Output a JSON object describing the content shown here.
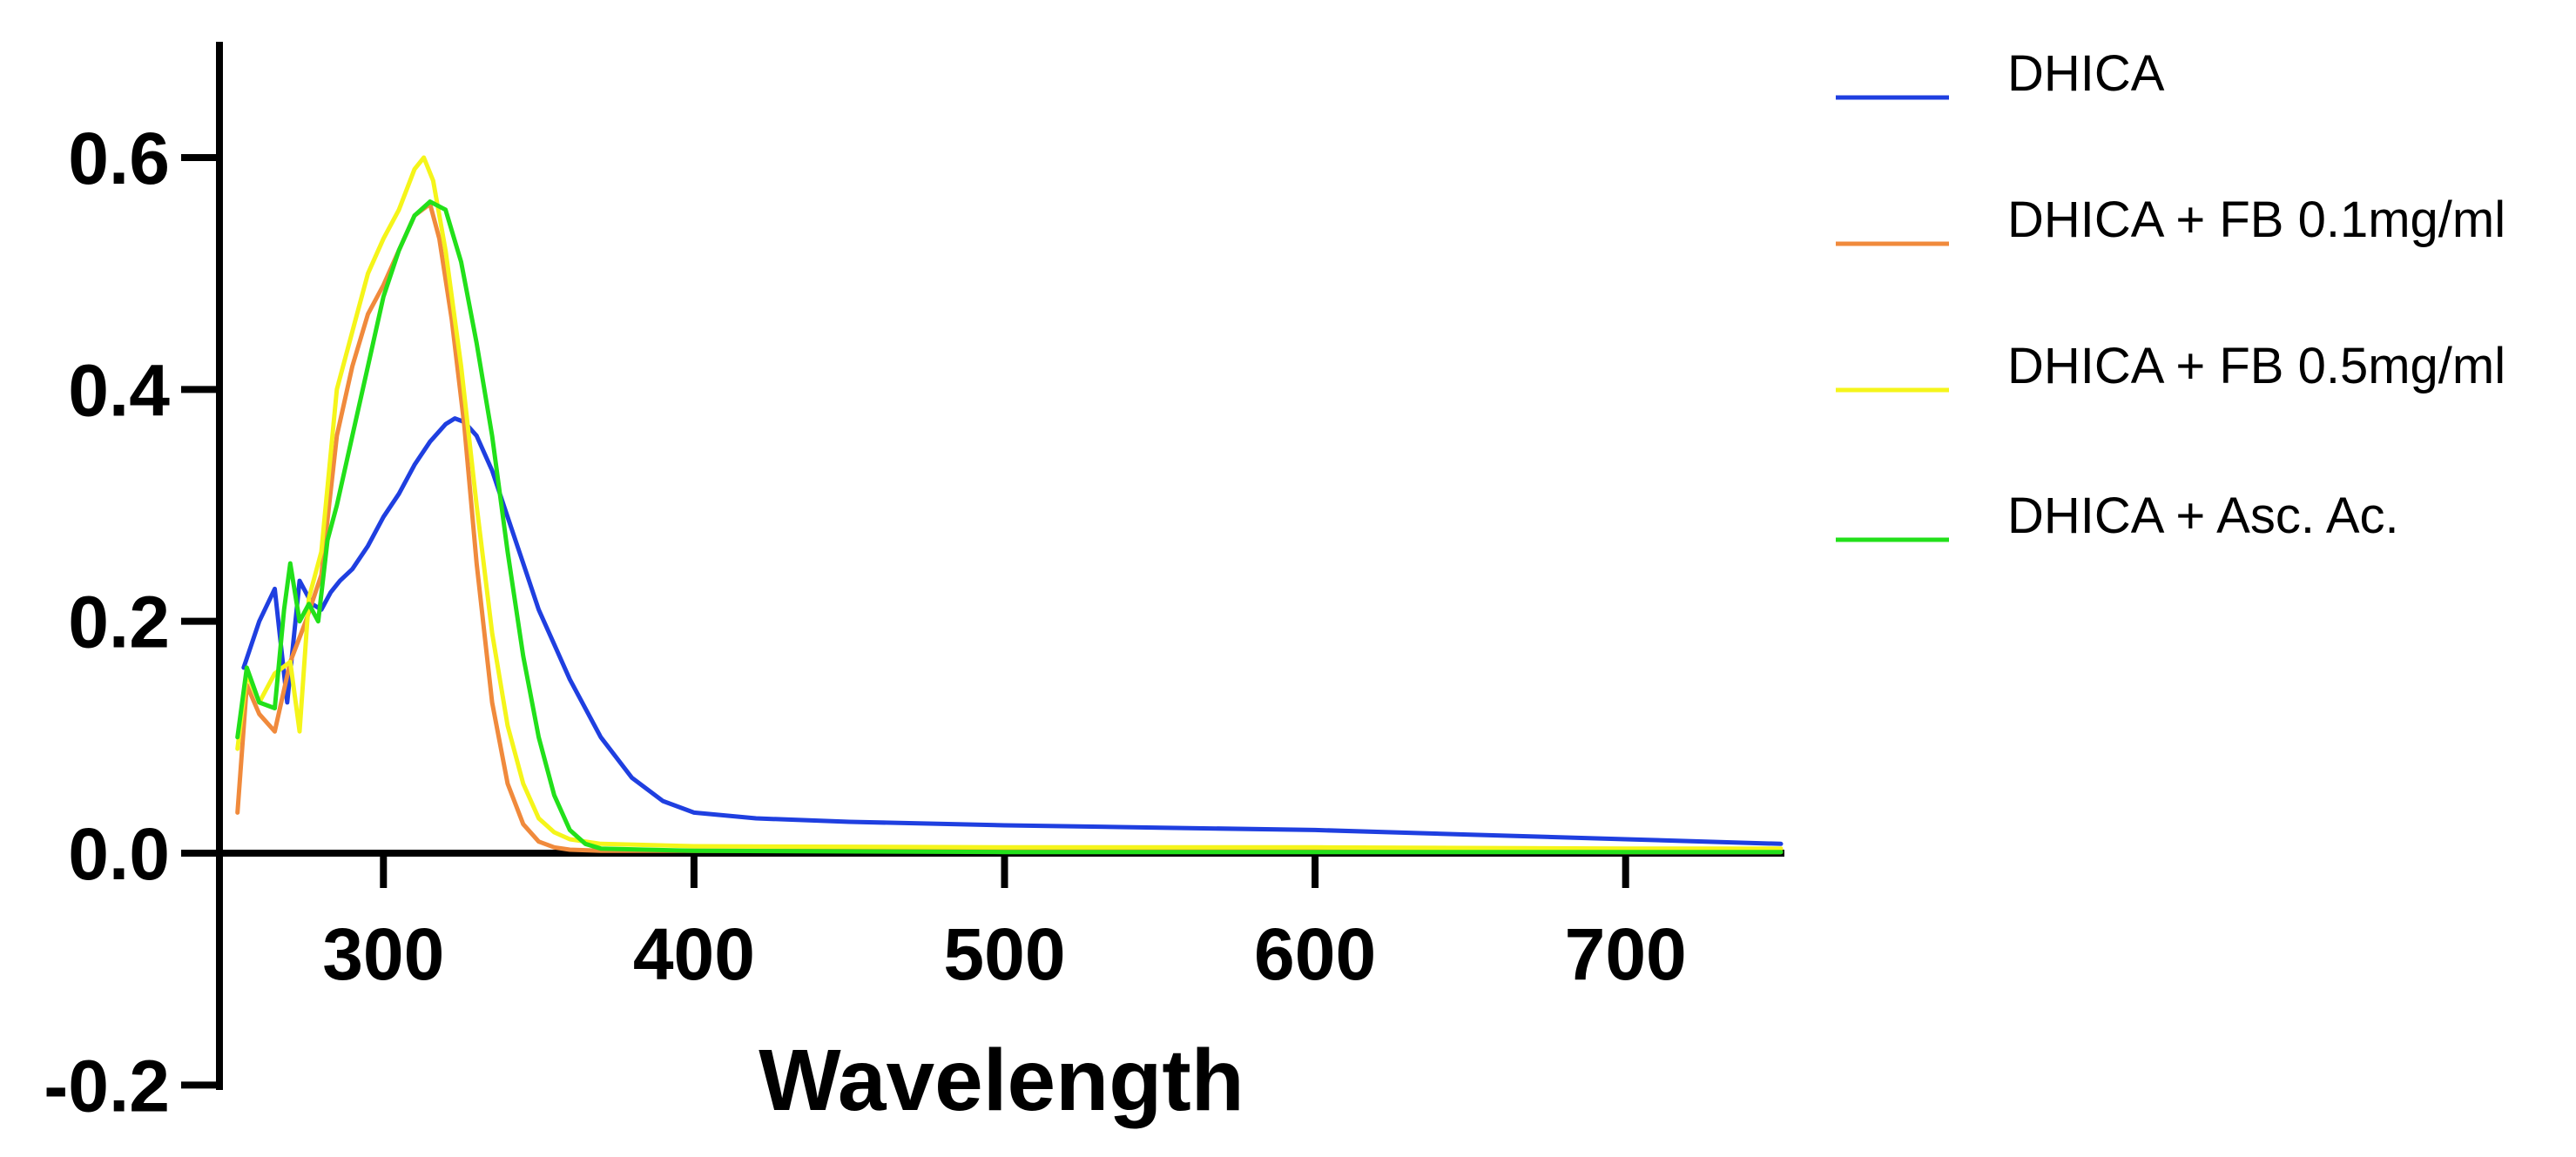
{
  "chart_data": {
    "type": "line",
    "title": "",
    "xlabel": "Wavelength",
    "ylabel": "",
    "xlim": [
      250,
      750
    ],
    "ylim": [
      -0.2,
      0.7
    ],
    "x_ticks": [
      300,
      400,
      500,
      600,
      700
    ],
    "x_tick_labels": [
      "300",
      "400",
      "500",
      "600",
      "700"
    ],
    "y_ticks": [
      -0.2,
      0.0,
      0.2,
      0.4,
      0.6
    ],
    "y_tick_labels": [
      "-0.2",
      "0.0",
      "0.2",
      "0.4",
      "0.6"
    ],
    "legend_position": "right",
    "series": [
      {
        "name": "DHICA",
        "color": "#1f3fe0",
        "x": [
          255,
          260,
          265,
          269,
          273,
          277,
          280,
          283,
          286,
          290,
          295,
          300,
          305,
          310,
          315,
          320,
          323,
          326,
          330,
          335,
          340,
          345,
          350,
          360,
          370,
          380,
          390,
          400,
          420,
          450,
          500,
          550,
          600,
          650,
          700,
          750
        ],
        "y": [
          0.16,
          0.2,
          0.228,
          0.13,
          0.235,
          0.215,
          0.21,
          0.225,
          0.235,
          0.245,
          0.265,
          0.29,
          0.31,
          0.335,
          0.355,
          0.37,
          0.375,
          0.372,
          0.36,
          0.33,
          0.29,
          0.25,
          0.21,
          0.15,
          0.1,
          0.065,
          0.045,
          0.035,
          0.03,
          0.027,
          0.024,
          0.022,
          0.02,
          0.016,
          0.012,
          0.008
        ]
      },
      {
        "name": "DHICA + FB 0.1mg/ml",
        "color": "#f08a3c",
        "x": [
          253,
          256,
          260,
          265,
          270,
          275,
          280,
          285,
          290,
          295,
          300,
          305,
          310,
          315,
          318,
          322,
          326,
          330,
          335,
          340,
          345,
          350,
          355,
          360,
          370,
          400,
          500,
          600,
          700,
          750
        ],
        "y": [
          0.035,
          0.145,
          0.12,
          0.105,
          0.165,
          0.2,
          0.24,
          0.36,
          0.42,
          0.465,
          0.49,
          0.52,
          0.55,
          0.56,
          0.53,
          0.46,
          0.37,
          0.25,
          0.13,
          0.06,
          0.025,
          0.01,
          0.005,
          0.003,
          0.002,
          0.002,
          0.002,
          0.002,
          0.001,
          0.001
        ]
      },
      {
        "name": "DHICA + FB 0.5mg/ml",
        "color": "#f5f51a",
        "x": [
          253,
          256,
          260,
          265,
          270,
          273,
          276,
          280,
          285,
          290,
          295,
          300,
          305,
          310,
          313,
          316,
          320,
          325,
          330,
          335,
          340,
          345,
          350,
          355,
          360,
          370,
          400,
          500,
          600,
          700,
          750
        ],
        "y": [
          0.09,
          0.155,
          0.13,
          0.155,
          0.165,
          0.105,
          0.22,
          0.26,
          0.4,
          0.45,
          0.5,
          0.53,
          0.555,
          0.59,
          0.6,
          0.58,
          0.52,
          0.42,
          0.3,
          0.19,
          0.11,
          0.06,
          0.03,
          0.018,
          0.012,
          0.008,
          0.006,
          0.005,
          0.005,
          0.004,
          0.004
        ]
      },
      {
        "name": "DHICA + Asc. Ac.",
        "color": "#22e01a",
        "x": [
          253,
          256,
          260,
          265,
          268,
          270,
          273,
          276,
          279,
          282,
          285,
          290,
          295,
          300,
          305,
          310,
          315,
          320,
          325,
          330,
          335,
          340,
          345,
          350,
          355,
          360,
          365,
          370,
          400,
          500,
          600,
          700,
          750
        ],
        "y": [
          0.1,
          0.16,
          0.13,
          0.125,
          0.21,
          0.25,
          0.2,
          0.215,
          0.2,
          0.27,
          0.3,
          0.36,
          0.42,
          0.48,
          0.52,
          0.55,
          0.562,
          0.555,
          0.51,
          0.44,
          0.36,
          0.26,
          0.17,
          0.1,
          0.05,
          0.02,
          0.008,
          0.004,
          0.002,
          0.001,
          0.001,
          0.001,
          0.001
        ]
      }
    ]
  }
}
